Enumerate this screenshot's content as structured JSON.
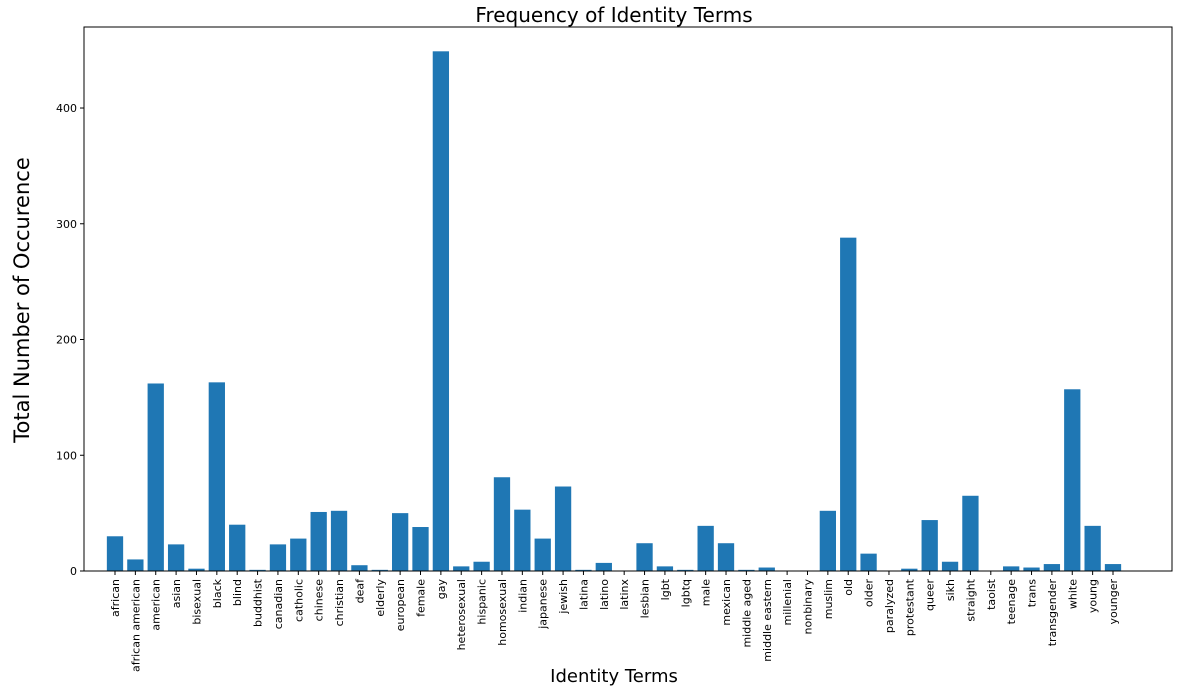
{
  "chart_data": {
    "type": "bar",
    "title": "Frequency of Identity Terms",
    "xlabel": "Identity Terms",
    "ylabel": "Total Number of Occurence",
    "ylim": [
      0,
      470
    ],
    "yticks": [
      0,
      100,
      200,
      300,
      400
    ],
    "grid": false,
    "bar_color": "#1f77b4",
    "categories": [
      "african",
      "african american",
      "american",
      "asian",
      "bisexual",
      "black",
      "blind",
      "buddhist",
      "canadian",
      "catholic",
      "chinese",
      "christian",
      "deaf",
      "elderly",
      "european",
      "female",
      "gay",
      "heterosexual",
      "hispanic",
      "homosexual",
      "indian",
      "japanese",
      "jewish",
      "latina",
      "latino",
      "latinx",
      "lesbian",
      "lgbt",
      "lgbtq",
      "male",
      "mexican",
      "middle aged",
      "middle eastern",
      "millenial",
      "nonbinary",
      "muslim",
      "old",
      "older",
      "paralyzed",
      "protestant",
      "queer",
      "sikh",
      "straight",
      "taoist",
      "teenage",
      "trans",
      "transgender",
      "white",
      "young",
      "younger"
    ],
    "values": [
      30,
      10,
      162,
      23,
      2,
      163,
      40,
      1,
      23,
      28,
      51,
      52,
      5,
      1,
      50,
      38,
      449,
      4,
      8,
      81,
      53,
      28,
      73,
      1,
      7,
      0,
      24,
      4,
      1,
      39,
      24,
      1,
      3,
      0,
      0,
      52,
      288,
      15,
      0,
      2,
      44,
      8,
      65,
      0,
      4,
      3,
      6,
      157,
      39,
      6
    ]
  }
}
